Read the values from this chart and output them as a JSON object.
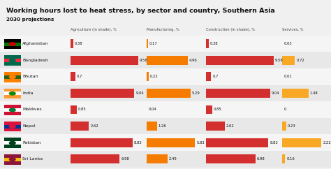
{
  "title": "Working hours lost to heat stress, by sector and country, Southern Asia",
  "subtitle": "2030 projections",
  "columns": [
    "Agriculture (in shade), %",
    "Manufacturing, %",
    "Construction (in shade), %",
    "Services, %"
  ],
  "countries": [
    "Afghanistan",
    "Bangladesh",
    "Bhutan",
    "India",
    "Maldives",
    "Nepal",
    "Pakistan",
    "Sri Lanka"
  ],
  "values": {
    "Agriculture": [
      0.38,
      9.58,
      0.7,
      9.04,
      0.85,
      2.62,
      8.83,
      6.98
    ],
    "Manufacturing": [
      0.17,
      4.96,
      0.22,
      5.29,
      0.04,
      1.26,
      5.83,
      2.49
    ],
    "Construction": [
      0.38,
      9.58,
      0.7,
      9.04,
      0.85,
      2.62,
      8.83,
      6.98
    ],
    "Services": [
      0.03,
      0.72,
      0.01,
      1.48,
      0.0,
      0.23,
      2.22,
      0.16
    ]
  },
  "max_agr": 10.0,
  "max_mfg": 6.5,
  "max_con": 10.0,
  "max_srv": 2.5,
  "color_agr": "#d32f2f",
  "color_mfg": "#f57c00",
  "color_con": "#d32f2f",
  "color_srv": "#f9a825",
  "bg_color": "#f0f0f0",
  "row_bg_light": "#f5f5f5",
  "row_bg_dark": "#e8e8e8",
  "header_color": "#444444",
  "text_color": "#111111",
  "flag_colors": {
    "Afghanistan": [
      "#000000",
      "#007700",
      "#cc0001"
    ],
    "Bangladesh": [
      "#006a4e",
      "#f42a41",
      "#006a4e"
    ],
    "Bhutan": [
      "#ff8000",
      "#2a6118",
      "#ff8000"
    ],
    "India": [
      "#ff9933",
      "#ffffff",
      "#138808"
    ],
    "Maldives": [
      "#d21034",
      "#ffffff",
      "#007e3a"
    ],
    "Nepal": [
      "#dc143c",
      "#003893",
      "#dc143c"
    ],
    "Pakistan": [
      "#01411c",
      "#ffffff",
      "#01411c"
    ],
    "Sri Lanka": [
      "#8d153a",
      "#f4bc00",
      "#8d153a"
    ]
  }
}
